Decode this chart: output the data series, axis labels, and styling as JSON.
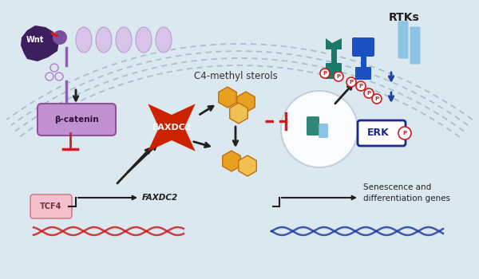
{
  "bg_color": "#dce8f0",
  "wnt_color": "#3d1f60",
  "purple_med": "#8060a0",
  "purple_light": "#d0b8e0",
  "beta_catenin_color": "#c090d0",
  "faxdc2_color": "#cc2200",
  "tcf4_color": "#f0b0c0",
  "sterol_dark": "#e8a020",
  "sterol_light": "#f0c050",
  "teal_color": "#1a7a6a",
  "blue_rtk": "#1a50c0",
  "light_blue": "#70b8e0",
  "erk_color": "#1a2890",
  "arrow_dark": "#202020",
  "red_color": "#cc2020",
  "membrane_color": "#a0b8cc",
  "nucleus_color": "#d8e8f0",
  "white": "#ffffff",
  "rtks_label": "RTKs",
  "wnt_label": "Wnt",
  "beta_label": "β-catenin",
  "faxdc2_label": "FAXDC2",
  "tcf4_label": "TCF4",
  "faxdc2_gene": "FAXDC2",
  "erk_label": "ERK",
  "p_label": "P",
  "sterol_label": "C4-methyl sterols",
  "senescence_label": "Senescence and\ndifferentiation genes"
}
